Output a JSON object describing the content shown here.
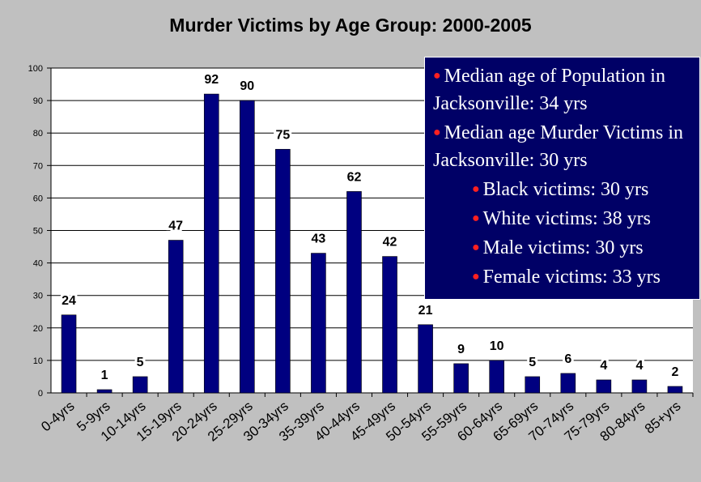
{
  "title": "Murder Victims by Age Group: 2000-2005",
  "colors": {
    "background": "#c0c0c0",
    "bar": "#000080",
    "plot_area": "#ffffff",
    "box": "#000066",
    "bullet": "#ff2020"
  },
  "chart_data": {
    "type": "bar",
    "title": "Murder Victims by Age Group: 2000-2005",
    "categories": [
      "0-4yrs",
      "5-9yrs",
      "10-14yrs",
      "15-19yrs",
      "20-24yrs",
      "25-29yrs",
      "30-34yrs",
      "35-39yrs",
      "40-44yrs",
      "45-49yrs",
      "50-54yrs",
      "55-59yrs",
      "60-64yrs",
      "65-69yrs",
      "70-74yrs",
      "75-79yrs",
      "80-84yrs",
      "85+yrs"
    ],
    "values": [
      24,
      1,
      5,
      47,
      92,
      90,
      75,
      43,
      62,
      42,
      21,
      9,
      10,
      5,
      6,
      4,
      4,
      2
    ],
    "ylim": [
      0,
      100
    ],
    "yticks": [
      0,
      10,
      20,
      30,
      40,
      50,
      60,
      70,
      80,
      90,
      100
    ],
    "grid": true,
    "data_labels": true,
    "xlabel": "",
    "ylabel": ""
  },
  "info_box": {
    "items": [
      {
        "text": "Median age of Population in Jacksonville: 34 yrs",
        "indent": false
      },
      {
        "text": "Median age Murder Victims in Jacksonville: 30 yrs",
        "indent": false
      },
      {
        "text": "Black victims: 30 yrs",
        "indent": true
      },
      {
        "text": "White victims: 38 yrs",
        "indent": true
      },
      {
        "text": "Male victims: 30 yrs",
        "indent": true
      },
      {
        "text": "Female victims: 33 yrs",
        "indent": true
      }
    ]
  }
}
